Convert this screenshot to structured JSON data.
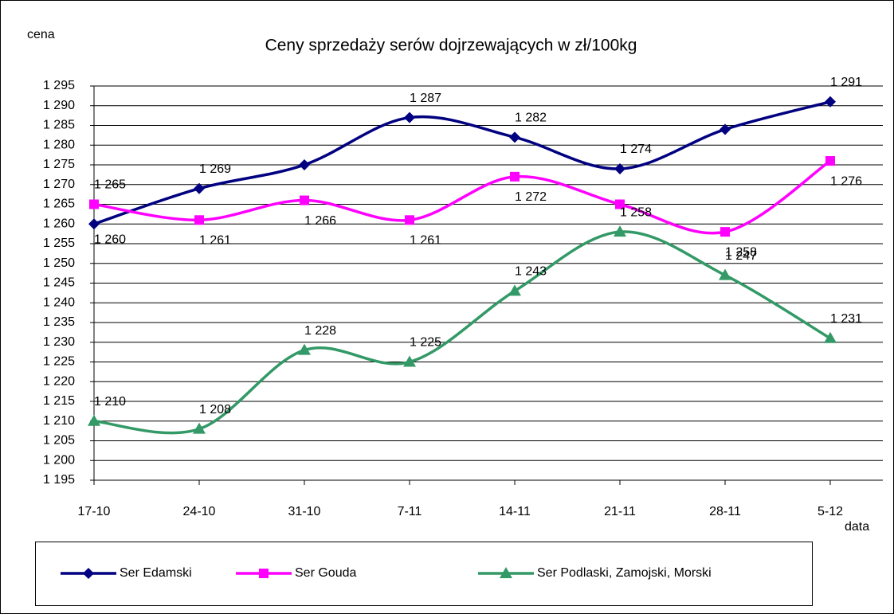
{
  "chart_data": {
    "type": "line",
    "title": "Ceny sprzedaży serów dojrzewających w zł/100kg",
    "y_label": "cena",
    "x_label": "data",
    "categories": [
      "17-10",
      "24-10",
      "31-10",
      "7-11",
      "14-11",
      "21-11",
      "28-11",
      "5-12"
    ],
    "series": [
      {
        "name": "Ser Edamski",
        "color": "#000080",
        "marker": "diamond",
        "values": [
          1260,
          1269,
          1275,
          1287,
          1282,
          1274,
          1284,
          1291
        ],
        "value_labels": [
          "1 260",
          "1 269",
          null,
          "1 287",
          "1 282",
          "1 274",
          null,
          "1 291"
        ]
      },
      {
        "name": "Ser Gouda",
        "color": "#ff00ff",
        "marker": "square",
        "values": [
          1265,
          1261,
          1266,
          1261,
          1272,
          1265,
          1258,
          1276
        ],
        "value_labels": [
          "1 265",
          "1 261",
          "1 266",
          "1 261",
          "1 272",
          null,
          "1 258",
          "1 276"
        ]
      },
      {
        "name": "Ser Podlaski, Zamojski, Morski",
        "color": "#339966",
        "marker": "triangle",
        "values": [
          1210,
          1208,
          1228,
          1225,
          1243,
          1258,
          1247,
          1231
        ],
        "value_labels": [
          "1 210",
          "1 208",
          "1 228",
          "1 225",
          "1 243",
          "1 258",
          "1 247",
          "1 231"
        ]
      }
    ],
    "ylim": [
      1195,
      1295
    ],
    "yticks": [
      {
        "value": 1195,
        "label": "1 195"
      },
      {
        "value": 1200,
        "label": "1 200"
      },
      {
        "value": 1205,
        "label": "1 205"
      },
      {
        "value": 1210,
        "label": "1 210"
      },
      {
        "value": 1215,
        "label": "1 215"
      },
      {
        "value": 1220,
        "label": "1 220"
      },
      {
        "value": 1225,
        "label": "1 225"
      },
      {
        "value": 1230,
        "label": "1 230"
      },
      {
        "value": 1235,
        "label": "1 235"
      },
      {
        "value": 1240,
        "label": "1 240"
      },
      {
        "value": 1245,
        "label": "1 245"
      },
      {
        "value": 1250,
        "label": "1 250"
      },
      {
        "value": 1255,
        "label": "1 255"
      },
      {
        "value": 1260,
        "label": "1 260"
      },
      {
        "value": 1265,
        "label": "1 265"
      },
      {
        "value": 1270,
        "label": "1 270"
      },
      {
        "value": 1275,
        "label": "1 275"
      },
      {
        "value": 1280,
        "label": "1 280"
      },
      {
        "value": 1285,
        "label": "1 285"
      },
      {
        "value": 1290,
        "label": "1 290"
      },
      {
        "value": 1295,
        "label": "1 295"
      }
    ],
    "grid": true,
    "legend": "bottom"
  }
}
